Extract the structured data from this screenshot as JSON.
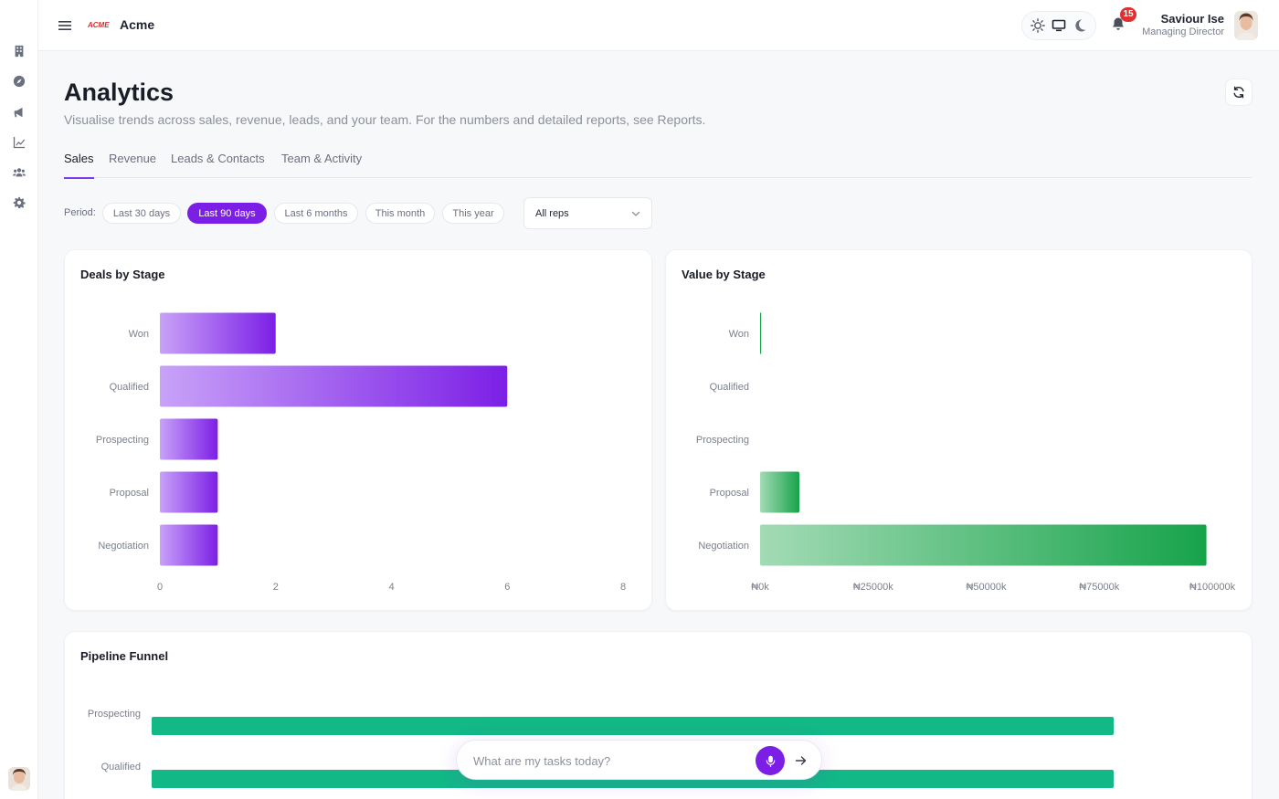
{
  "app": {
    "brand": "Acme",
    "logo_text": "ACME"
  },
  "rail": {
    "icons": [
      "building-icon",
      "compass-icon",
      "megaphone-icon",
      "chart-line-icon",
      "users-icon",
      "gear-icon"
    ]
  },
  "header": {
    "user_name": "Saviour Ise",
    "user_role": "Managing Director",
    "notification_count": "15"
  },
  "page": {
    "title": "Analytics",
    "subtitle": "Visualise trends across sales, revenue, leads, and your team. For the numbers and detailed reports, see Reports."
  },
  "tabs": [
    {
      "label": "Sales",
      "active": true
    },
    {
      "label": "Revenue",
      "active": false
    },
    {
      "label": "Leads & Contacts",
      "active": false
    },
    {
      "label": "Team & Activity",
      "active": false
    }
  ],
  "filters": {
    "period_label": "Period:",
    "periods": [
      {
        "label": "Last 30 days",
        "active": false
      },
      {
        "label": "Last 90 days",
        "active": true
      },
      {
        "label": "Last 6 months",
        "active": false
      },
      {
        "label": "This month",
        "active": false
      },
      {
        "label": "This year",
        "active": false
      }
    ],
    "rep_select": "All reps"
  },
  "colors": {
    "accent": "#7c1fe6",
    "purple_light": "#c8a2f8",
    "green": "#16a34a",
    "green_light": "#a3dbb5",
    "funnel": "#12b886"
  },
  "chart_data": [
    {
      "type": "bar",
      "orientation": "horizontal",
      "title": "Deals by Stage",
      "categories": [
        "Won",
        "Qualified",
        "Prospecting",
        "Proposal",
        "Negotiation"
      ],
      "values": [
        2,
        6,
        1,
        1,
        1
      ],
      "xlim": [
        0,
        8
      ],
      "xticks": [
        "0",
        "2",
        "4",
        "6",
        "8"
      ]
    },
    {
      "type": "bar",
      "orientation": "horizontal",
      "title": "Value by Stage",
      "categories": [
        "Won",
        "Qualified",
        "Prospecting",
        "Proposal",
        "Negotiation"
      ],
      "values": [
        200,
        0,
        0,
        8700,
        98700
      ],
      "xlim": [
        0,
        100000
      ],
      "xticks": [
        "₦0k",
        "₦25000k",
        "₦50000k",
        "₦75000k",
        "₦100000k"
      ]
    },
    {
      "type": "bar",
      "orientation": "horizontal",
      "title": "Pipeline Funnel",
      "categories": [
        "Prospecting",
        "Qualified"
      ],
      "values": [
        100,
        100
      ],
      "xlim": [
        0,
        100
      ]
    }
  ],
  "chat": {
    "placeholder": "What are my tasks today?"
  }
}
